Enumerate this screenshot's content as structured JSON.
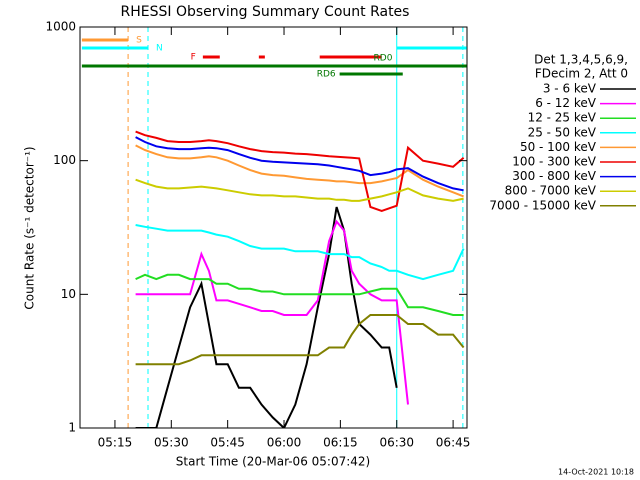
{
  "chart_data": {
    "type": "line",
    "title": "RHESSI Observing Summary Count Rates",
    "xlabel": "Start Time (20-Mar-06 05:07:42)",
    "ylabel": "Count Rate (s⁻¹ detector⁻¹)",
    "log_y": true,
    "xlim": [
      305.7,
      408.7
    ],
    "ylim": [
      1,
      1000
    ],
    "xticks": [
      {
        "value": 315,
        "label": "05:15"
      },
      {
        "value": 330,
        "label": "05:30"
      },
      {
        "value": 345,
        "label": "05:45"
      },
      {
        "value": 360,
        "label": "06:00"
      },
      {
        "value": 375,
        "label": "06:15"
      },
      {
        "value": 390,
        "label": "06:30"
      },
      {
        "value": 405,
        "label": "06:45"
      }
    ],
    "yticks": [
      1,
      10,
      100,
      1000
    ],
    "legend_header": [
      "Det 1,3,4,5,6,9,",
      "FDecim 2, Att 0"
    ],
    "footer": "14-Oct-2021 10:18",
    "x": [
      320.5,
      323,
      326,
      329,
      332,
      335,
      338,
      340,
      342,
      345,
      348,
      351,
      354,
      357,
      360,
      363,
      366,
      369,
      372,
      374,
      376,
      378,
      380,
      383,
      386,
      388,
      390,
      393,
      397,
      401,
      405,
      407.8
    ],
    "series": [
      {
        "name": "3 - 6 keV",
        "color": "#000000",
        "values": [
          1,
          1,
          1,
          2,
          4,
          8,
          12,
          6,
          3,
          3,
          2,
          2,
          1.5,
          1.2,
          1,
          1.5,
          3,
          8,
          20,
          45,
          30,
          12,
          6,
          5,
          4,
          4,
          2,
          null,
          null,
          null,
          null,
          null
        ]
      },
      {
        "name": "6 - 12 keV",
        "color": "#ff00ff",
        "values": [
          10,
          10,
          10,
          10,
          10,
          10,
          20,
          15,
          9,
          9,
          8.5,
          8,
          7.5,
          7.5,
          7,
          7,
          7,
          9,
          25,
          35,
          30,
          15,
          12,
          10,
          9,
          9,
          9,
          1.5,
          null,
          null,
          null,
          null
        ]
      },
      {
        "name": "12 - 25 keV",
        "color": "#22dd22",
        "values": [
          13,
          14,
          13,
          14,
          14,
          13,
          13,
          13,
          12,
          12,
          11,
          11,
          10.5,
          10.5,
          10,
          10,
          10,
          10,
          10,
          10,
          10,
          10,
          10,
          10.5,
          11,
          11,
          11,
          8,
          8,
          7.5,
          7,
          7
        ]
      },
      {
        "name": "25 - 50 keV",
        "color": "#00ffff",
        "values": [
          33,
          32,
          31,
          30,
          30,
          30,
          30,
          29,
          28,
          27,
          25,
          23,
          22,
          22,
          22,
          21,
          21,
          21,
          20,
          20,
          20,
          19,
          19,
          17,
          16,
          15,
          15,
          14,
          13,
          14,
          15,
          22
        ]
      },
      {
        "name": "50 - 100 keV",
        "color": "#ff9933",
        "values": [
          130,
          120,
          112,
          106,
          104,
          104,
          106,
          108,
          106,
          100,
          92,
          85,
          80,
          78,
          77,
          75,
          73,
          72,
          71,
          70,
          70,
          69,
          68,
          68,
          70,
          72,
          74,
          85,
          72,
          64,
          58,
          54
        ]
      },
      {
        "name": "100 - 300 keV",
        "color": "#ee0000",
        "values": [
          165,
          155,
          148,
          140,
          138,
          138,
          140,
          142,
          140,
          135,
          128,
          122,
          118,
          116,
          115,
          113,
          112,
          110,
          108,
          107,
          106,
          105,
          104,
          45,
          42,
          44,
          46,
          125,
          100,
          95,
          90,
          105
        ]
      },
      {
        "name": "300 - 800 keV",
        "color": "#0000ee",
        "values": [
          150,
          138,
          128,
          124,
          122,
          122,
          124,
          125,
          124,
          120,
          112,
          105,
          100,
          98,
          97,
          96,
          95,
          94,
          92,
          90,
          88,
          86,
          84,
          78,
          80,
          82,
          86,
          88,
          76,
          68,
          62,
          60
        ]
      },
      {
        "name": "800 - 7000 keV",
        "color": "#cccc00",
        "values": [
          72,
          68,
          64,
          62,
          62,
          63,
          64,
          63,
          62,
          60,
          58,
          56,
          55,
          55,
          54,
          54,
          53,
          52,
          52,
          51,
          51,
          50,
          50,
          52,
          54,
          56,
          58,
          62,
          55,
          52,
          50,
          52
        ]
      },
      {
        "name": "7000 - 15000 keV",
        "color": "#808000",
        "values": [
          3,
          3,
          3,
          3,
          3,
          3.2,
          3.5,
          3.5,
          3.5,
          3.5,
          3.5,
          3.5,
          3.5,
          3.5,
          3.5,
          3.5,
          3.5,
          3.5,
          4,
          4,
          4,
          5,
          6,
          7,
          7,
          7,
          7,
          6,
          6,
          5,
          5,
          4
        ]
      }
    ],
    "flags": [
      {
        "label": "S",
        "color": "#ff9933",
        "segments": [
          [
            306.2,
            318.5
          ]
        ]
      },
      {
        "label": "N",
        "color": "#00ffff",
        "segments": [
          [
            306.2,
            323.8
          ],
          [
            390,
            408.6
          ]
        ]
      },
      {
        "label": "F",
        "color": "#ee0000",
        "segments": [
          [
            338.4,
            342.9
          ],
          [
            353.3,
            354.9
          ],
          [
            369.5,
            386
          ]
        ]
      },
      {
        "label": "RD0",
        "color": "#007700",
        "segments": [
          [
            306.2,
            408.6
          ]
        ]
      },
      {
        "label": "RD6",
        "color": "#007700",
        "segments": [
          [
            374.8,
            391.6
          ]
        ]
      }
    ],
    "vlines": [
      {
        "x": 318.5,
        "color": "#ff9933",
        "dashed": true
      },
      {
        "x": 323.8,
        "color": "#00ffff",
        "dashed": true
      },
      {
        "x": 390,
        "color": "#00ffff",
        "dashed": false
      },
      {
        "x": 407.6,
        "color": "#00ffff",
        "dashed": true
      }
    ]
  }
}
